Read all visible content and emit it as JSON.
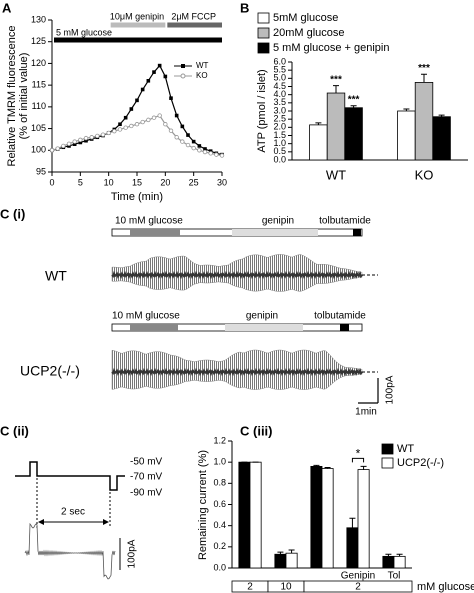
{
  "panel_labels": [
    "A",
    "B",
    "C (i)",
    "C (ii)",
    "C (iii)"
  ],
  "chart_data": [
    {
      "type": "line",
      "ylabel": [
        "Relative TMRM fluorescence",
        "(% of initial value)"
      ],
      "xlabel": "Time (min)",
      "x": [
        0,
        1,
        2,
        3,
        4,
        5,
        6,
        7,
        8,
        9,
        10,
        11,
        12,
        13,
        14,
        15,
        16,
        17,
        18,
        19,
        20,
        21,
        22,
        23,
        24,
        25,
        26,
        27,
        28,
        29,
        30
      ],
      "series": [
        {
          "name": "WT",
          "color": "#000000",
          "marker": "square",
          "values": [
            100,
            100.3,
            100.7,
            101,
            101.4,
            101.8,
            102.2,
            102.6,
            103,
            103.4,
            104,
            104.8,
            106,
            107.5,
            109.5,
            111.5,
            114,
            116,
            118,
            119.5,
            117,
            112,
            108,
            105.5,
            103.5,
            102,
            101,
            100.3,
            99.8,
            99.3,
            99
          ]
        },
        {
          "name": "KO",
          "color": "#999999",
          "marker": "circle",
          "values": [
            100,
            100.4,
            101,
            101.5,
            102,
            102.4,
            102.8,
            103,
            103.3,
            103.6,
            104,
            104.4,
            104.8,
            105.2,
            105.6,
            106,
            106.5,
            107,
            107.5,
            108,
            106,
            104.5,
            103,
            102,
            101.2,
            100.5,
            100,
            99.6,
            99.3,
            99,
            98.8
          ]
        }
      ],
      "xlim": [
        0,
        30
      ],
      "xticks": [
        0,
        5,
        10,
        15,
        20,
        25,
        30
      ],
      "ylim": [
        95,
        130
      ],
      "yticks": [
        95,
        100,
        105,
        110,
        115,
        120,
        125,
        130
      ],
      "legend": "right",
      "annotations": [
        {
          "text": "5 mM glucose",
          "x": [
            0,
            30
          ],
          "color": "#000000"
        },
        {
          "text": "10μM genipin",
          "x": [
            10,
            20
          ],
          "color": "#bbbbbb"
        },
        {
          "text": "2μM FCCP",
          "x": [
            20,
            30
          ],
          "color": "#666666"
        }
      ]
    },
    {
      "type": "bar",
      "ylabel": "ATP (pmol / islet)",
      "categories": [
        "WT",
        "KO"
      ],
      "series": [
        {
          "name": "5mM glucose",
          "color": "#ffffff",
          "values": [
            2.15,
            3.0
          ],
          "errors": [
            0.12,
            0.12
          ]
        },
        {
          "name": "20mM glucose",
          "color": "#bbbbbb",
          "values": [
            4.1,
            4.75
          ],
          "errors": [
            0.45,
            0.5
          ]
        },
        {
          "name": "5 mM glucose + genipin",
          "color": "#000000",
          "values": [
            3.2,
            2.65
          ],
          "errors": [
            0.12,
            0.1
          ]
        }
      ],
      "ylim": [
        0,
        6
      ],
      "yticks": [
        {
          "value": 0,
          "label": "0.0"
        },
        0.5,
        {
          "value": 1,
          "label": "1.0"
        },
        1.5,
        {
          "value": 2,
          "label": "2.0"
        },
        2.5,
        {
          "value": 3,
          "label": "3.0"
        },
        3.5,
        {
          "value": 4,
          "label": "4.0"
        },
        4.5,
        {
          "value": 5,
          "label": "5.0"
        },
        5.5,
        {
          "value": 6,
          "label": "6.0"
        }
      ],
      "legend": "top",
      "annotations": [
        {
          "text": "***",
          "series": 1,
          "category": 0
        },
        {
          "text": "***",
          "series": 2,
          "category": 0
        },
        {
          "text": "***",
          "series": 1,
          "category": 1
        }
      ]
    },
    {
      "type": "bar",
      "ylabel": "Remaining current (%)",
      "categories": [
        null,
        null,
        null,
        "Genipin",
        "Tol"
      ],
      "series": [
        {
          "name": "WT",
          "color": "#000000",
          "values": [
            1.0,
            0.13,
            0.96,
            0.38,
            0.11
          ],
          "errors": [
            0,
            0.02,
            0.01,
            0.09,
            0.02
          ]
        },
        {
          "name": "UCP2(-/-)",
          "color": "#ffffff",
          "values": [
            1.0,
            0.14,
            0.94,
            0.93,
            0.11
          ],
          "errors": [
            0,
            0.03,
            0.01,
            0.03,
            0.02
          ]
        }
      ],
      "ylim": [
        0,
        1.2
      ],
      "yticks": [
        {
          "value": 0,
          "label": "0.0"
        },
        0.2,
        0.4,
        0.6,
        0.8,
        {
          "value": 1,
          "label": "1.0"
        },
        1.2
      ],
      "legend": "upper right",
      "annotations": [
        {
          "text": "*",
          "category": 3
        }
      ],
      "conditions": {
        "labels": [
          "2",
          "10",
          "2"
        ],
        "unit": "mM glucose"
      }
    }
  ],
  "c_i": {
    "traces": [
      {
        "label": "WT",
        "protocol": [
          "10 mM glucose",
          "genipin",
          "tolbutamide"
        ]
      },
      {
        "label": "UCP2(-/-)",
        "protocol": [
          "10 mM glucose",
          "genipin",
          "tolbutamide"
        ]
      }
    ],
    "scale": [
      "100pA",
      "1min"
    ]
  },
  "c_ii": {
    "voltages": [
      "-50 mV",
      "-70 mV",
      "-90 mV"
    ],
    "interval": "2 sec",
    "scale": "100pA"
  }
}
